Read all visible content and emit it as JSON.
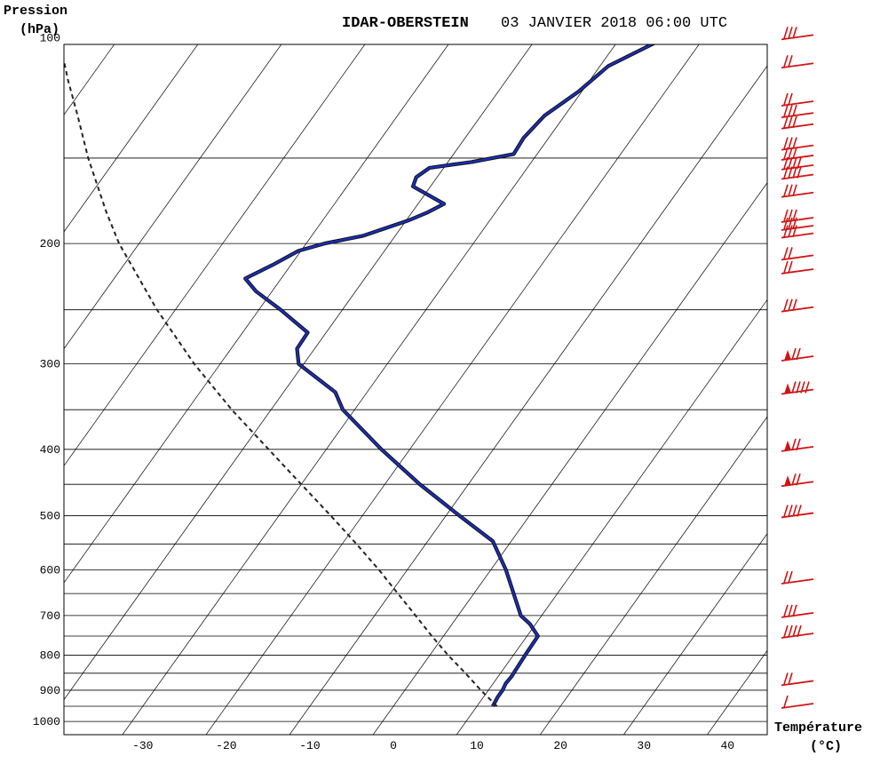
{
  "chart_data": {
    "type": "line",
    "title": "IDAR-OBERSTEIN",
    "subtitle": "03 JANVIER 2018 06:00 UTC",
    "ylabel": "Pression",
    "ylabel_unit": "(hPa)",
    "xlabel": "Température",
    "xlabel_unit": "(°C)",
    "y_scale": "log",
    "ylim": [
      1050,
      100
    ],
    "xlim": [
      -38,
      45
    ],
    "skew": true,
    "y_ticks": [
      100,
      200,
      300,
      400,
      500,
      600,
      700,
      800,
      900,
      1000
    ],
    "y_tick_labels": [
      "100",
      "200",
      "300",
      "400",
      "500",
      "600",
      "700",
      "800",
      "900",
      "1000"
    ],
    "x_ticks": [
      -30,
      -20,
      -10,
      0,
      10,
      20,
      30,
      40
    ],
    "x_tick_labels": [
      "-30",
      "-20",
      "-10",
      "0",
      "10",
      "20",
      "30",
      "40"
    ],
    "isobars": [
      150,
      200,
      250,
      300,
      350,
      400,
      450,
      500,
      550,
      600,
      650,
      700,
      750,
      800,
      850,
      900,
      950,
      1000
    ],
    "isotherms": [
      -120,
      -110,
      -100,
      -90,
      -80,
      -70,
      -60,
      -50,
      -40,
      -30,
      -20,
      -10,
      0,
      10,
      20,
      30,
      40
    ],
    "series": [
      {
        "style": "solid",
        "color": "#1a2fbf",
        "points": [
          [
            950,
            11.9
          ],
          [
            920,
            11.7
          ],
          [
            900,
            11.7
          ],
          [
            880,
            11.5
          ],
          [
            860,
            11.6
          ],
          [
            800,
            11.4
          ],
          [
            750,
            11.3
          ],
          [
            720,
            9.3
          ],
          [
            700,
            7.5
          ],
          [
            600,
            1.8
          ],
          [
            545,
            -2.2
          ],
          [
            500,
            -8.4
          ],
          [
            450,
            -15.8
          ],
          [
            400,
            -23.4
          ],
          [
            350,
            -31.4
          ],
          [
            330,
            -33.8
          ],
          [
            300,
            -40.6
          ],
          [
            295,
            -41.1
          ],
          [
            285,
            -42.1
          ],
          [
            270,
            -42.2
          ],
          [
            250,
            -47.4
          ],
          [
            235,
            -51.9
          ],
          [
            225,
            -54.3
          ],
          [
            215,
            -52.2
          ],
          [
            205,
            -50.3
          ],
          [
            200,
            -47.8
          ],
          [
            195,
            -43.9
          ],
          [
            185,
            -39.7
          ],
          [
            180,
            -38.1
          ],
          [
            175,
            -36.9
          ],
          [
            165,
            -42.1
          ],
          [
            160,
            -42.5
          ],
          [
            155,
            -41.7
          ],
          [
            152,
            -37.2
          ],
          [
            148,
            -32.8
          ],
          [
            140,
            -33.0
          ],
          [
            130,
            -32.4
          ],
          [
            120,
            -30.4
          ],
          [
            110,
            -29.0
          ],
          [
            100,
            -24.6
          ]
        ]
      },
      {
        "style": "dashed",
        "color": "#222222",
        "points": [
          [
            950,
            12.4
          ],
          [
            900,
            9.1
          ],
          [
            850,
            5.8
          ],
          [
            800,
            2.2
          ],
          [
            750,
            -1.4
          ],
          [
            700,
            -5.1
          ],
          [
            650,
            -9.1
          ],
          [
            600,
            -13.4
          ],
          [
            550,
            -18.3
          ],
          [
            500,
            -23.8
          ],
          [
            450,
            -30.0
          ],
          [
            400,
            -36.9
          ],
          [
            350,
            -44.7
          ],
          [
            300,
            -53.1
          ],
          [
            250,
            -62.2
          ],
          [
            200,
            -72.4
          ],
          [
            180,
            -76.6
          ],
          [
            150,
            -83.4
          ],
          [
            130,
            -88.3
          ],
          [
            115,
            -92.6
          ],
          [
            100,
            -97.2
          ]
        ]
      }
    ],
    "wind_barbs": [
      {
        "p": 100,
        "barbs": 3,
        "pennants": 0
      },
      {
        "p": 110,
        "barbs": 2,
        "pennants": 0
      },
      {
        "p": 125,
        "barbs": 2,
        "pennants": 0
      },
      {
        "p": 130,
        "barbs": 3,
        "pennants": 0
      },
      {
        "p": 135,
        "barbs": 3,
        "pennants": 0
      },
      {
        "p": 145,
        "barbs": 3,
        "pennants": 0
      },
      {
        "p": 150,
        "barbs": 3,
        "pennants": 0
      },
      {
        "p": 155,
        "barbs": 4,
        "pennants": 0
      },
      {
        "p": 160,
        "barbs": 4,
        "pennants": 0
      },
      {
        "p": 170,
        "barbs": 3,
        "pennants": 0
      },
      {
        "p": 185,
        "barbs": 3,
        "pennants": 0
      },
      {
        "p": 190,
        "barbs": 3,
        "pennants": 0
      },
      {
        "p": 195,
        "barbs": 3,
        "pennants": 0
      },
      {
        "p": 210,
        "barbs": 2,
        "pennants": 0
      },
      {
        "p": 220,
        "barbs": 2,
        "pennants": 0
      },
      {
        "p": 250,
        "barbs": 3,
        "pennants": 0
      },
      {
        "p": 295,
        "barbs": 2,
        "pennants": 1
      },
      {
        "p": 330,
        "barbs": 4,
        "pennants": 1
      },
      {
        "p": 400,
        "barbs": 2,
        "pennants": 1
      },
      {
        "p": 450,
        "barbs": 2,
        "pennants": 1
      },
      {
        "p": 500,
        "barbs": 4,
        "pennants": 0
      },
      {
        "p": 625,
        "barbs": 2,
        "pennants": 0
      },
      {
        "p": 700,
        "barbs": 3,
        "pennants": 0
      },
      {
        "p": 750,
        "barbs": 4,
        "pennants": 0
      },
      {
        "p": 880,
        "barbs": 2,
        "pennants": 0
      },
      {
        "p": 950,
        "barbs": 1,
        "pennants": 0
      }
    ],
    "grid": true,
    "colors": {
      "profile": "#1a2fbf",
      "barbs": "#d01414",
      "grid": "#000000"
    }
  }
}
